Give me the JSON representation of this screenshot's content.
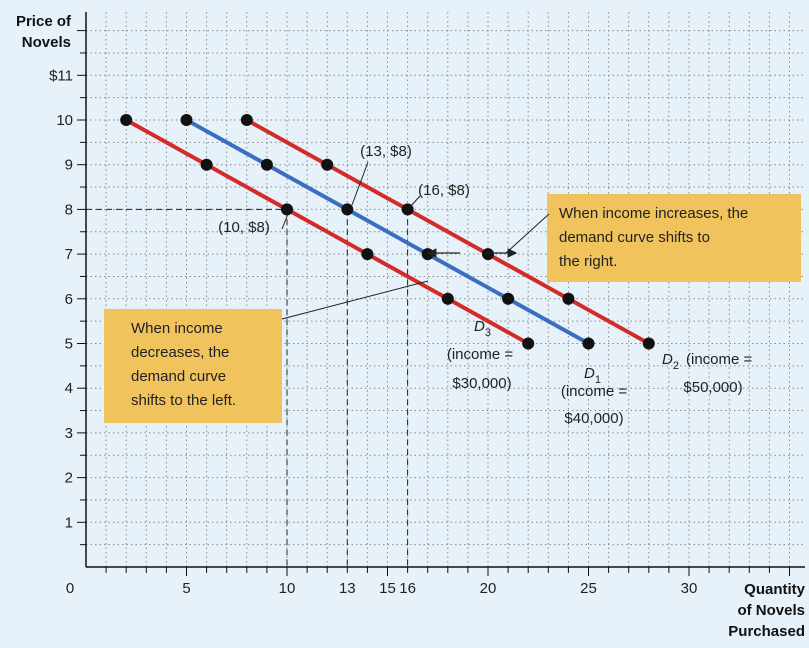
{
  "chart_data": {
    "type": "line",
    "ylabel_lines": [
      "Price of",
      "Novels"
    ],
    "xlabel_lines": [
      "Quantity",
      "of Novels",
      "Purchased"
    ],
    "xlim": [
      0,
      32
    ],
    "ylim": [
      0,
      12
    ],
    "x_ticks": [
      {
        "v": 0,
        "label": "0"
      },
      {
        "v": 5,
        "label": "5"
      },
      {
        "v": 10,
        "label": "10"
      },
      {
        "v": 13,
        "label": "13"
      },
      {
        "v": 15,
        "label": "15"
      },
      {
        "v": 16,
        "label": "16"
      },
      {
        "v": 20,
        "label": "20"
      },
      {
        "v": 25,
        "label": "25"
      },
      {
        "v": 30,
        "label": "30"
      }
    ],
    "y_ticks": [
      {
        "v": 1,
        "label": "1"
      },
      {
        "v": 2,
        "label": "2"
      },
      {
        "v": 3,
        "label": "3"
      },
      {
        "v": 4,
        "label": "4"
      },
      {
        "v": 5,
        "label": "5"
      },
      {
        "v": 6,
        "label": "6"
      },
      {
        "v": 7,
        "label": "7"
      },
      {
        "v": 8,
        "label": "8"
      },
      {
        "v": 9,
        "label": "9"
      },
      {
        "v": 10,
        "label": "10"
      },
      {
        "v": 11,
        "label": "$11"
      }
    ],
    "grid": true,
    "series": [
      {
        "name": "D3",
        "income_label": [
          "(income =",
          "$30,000)"
        ],
        "color": "#d42a2a",
        "points": [
          [
            2,
            10
          ],
          [
            6,
            9
          ],
          [
            10,
            8
          ],
          [
            14,
            7
          ],
          [
            18,
            6
          ],
          [
            22,
            5
          ]
        ]
      },
      {
        "name": "D1",
        "income_label": [
          "(income =",
          "$40,000)"
        ],
        "color": "#3a6fc0",
        "points": [
          [
            5,
            10
          ],
          [
            9,
            9
          ],
          [
            13,
            8
          ],
          [
            17,
            7
          ],
          [
            21,
            6
          ],
          [
            25,
            5
          ]
        ]
      },
      {
        "name": "D2",
        "income_label": [
          "(income =",
          "$50,000)"
        ],
        "color": "#d42a2a",
        "points": [
          [
            8,
            10
          ],
          [
            12,
            9
          ],
          [
            16,
            8
          ],
          [
            20,
            7
          ],
          [
            24,
            6
          ],
          [
            28,
            5
          ]
        ]
      }
    ],
    "annotations": [
      {
        "text": "(10, $8)",
        "x": 10,
        "y": 8
      },
      {
        "text": "(13, $8)",
        "x": 13,
        "y": 8
      },
      {
        "text": "(16, $8)",
        "x": 16,
        "y": 8
      }
    ],
    "callouts": [
      {
        "lines": [
          "When income increases, the",
          "demand curve shifts to",
          "the right."
        ]
      },
      {
        "lines": [
          "When income",
          "decreases, the",
          "demand curve",
          "shifts to the left."
        ]
      }
    ],
    "colors": {
      "background": "#e6f1f9",
      "callout_fill": "#f0c35c",
      "grid": "#8a8a8a"
    }
  }
}
